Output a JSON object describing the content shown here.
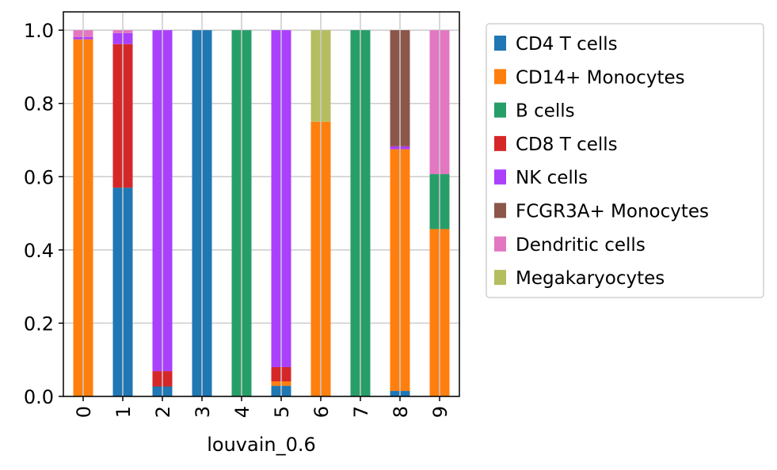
{
  "chart_data": {
    "type": "bar",
    "stacked": true,
    "title": "",
    "xlabel": "louvain_0.6",
    "ylabel": "",
    "categories": [
      "0",
      "1",
      "2",
      "3",
      "4",
      "5",
      "6",
      "7",
      "8",
      "9"
    ],
    "ylim": [
      0,
      1.05
    ],
    "yticks": [
      0.0,
      0.2,
      0.4,
      0.6,
      0.8,
      1.0
    ],
    "ytick_labels": [
      "0.0",
      "0.2",
      "0.4",
      "0.6",
      "0.8",
      "1.0"
    ],
    "grid": true,
    "legend_position": "outside-right-top",
    "series": [
      {
        "name": "CD4 T cells",
        "color": "#1f77b4",
        "values": [
          0.0,
          0.57,
          0.027,
          1.0,
          0.0,
          0.029,
          0.0,
          0.0,
          0.015,
          0.0
        ]
      },
      {
        "name": "CD14+ Monocytes",
        "color": "#ff7f0e",
        "values": [
          0.975,
          0.0,
          0.0,
          0.0,
          0.0,
          0.012,
          0.75,
          0.0,
          0.66,
          0.457
        ]
      },
      {
        "name": "B cells",
        "color": "#279e68",
        "values": [
          0.0,
          0.0,
          0.0,
          0.0,
          1.0,
          0.0,
          0.0,
          1.0,
          0.0,
          0.15
        ]
      },
      {
        "name": "CD8 T cells",
        "color": "#d62728",
        "values": [
          0.0,
          0.392,
          0.042,
          0.0,
          0.0,
          0.039,
          0.0,
          0.0,
          0.0,
          0.0
        ]
      },
      {
        "name": "NK cells",
        "color": "#aa40fc",
        "values": [
          0.006,
          0.03,
          0.931,
          0.0,
          0.0,
          0.92,
          0.0,
          0.0,
          0.008,
          0.0
        ]
      },
      {
        "name": "FCGR3A+ Monocytes",
        "color": "#8c564b",
        "values": [
          0.0,
          0.0,
          0.0,
          0.0,
          0.0,
          0.0,
          0.0,
          0.0,
          0.317,
          0.0
        ]
      },
      {
        "name": "Dendritic cells",
        "color": "#e377c2",
        "values": [
          0.019,
          0.008,
          0.0,
          0.0,
          0.0,
          0.0,
          0.0,
          0.0,
          0.0,
          0.393
        ]
      },
      {
        "name": "Megakaryocytes",
        "color": "#b5bd61",
        "values": [
          0.0,
          0.0,
          0.0,
          0.0,
          0.0,
          0.0,
          0.25,
          0.0,
          0.0,
          0.0
        ]
      }
    ]
  }
}
